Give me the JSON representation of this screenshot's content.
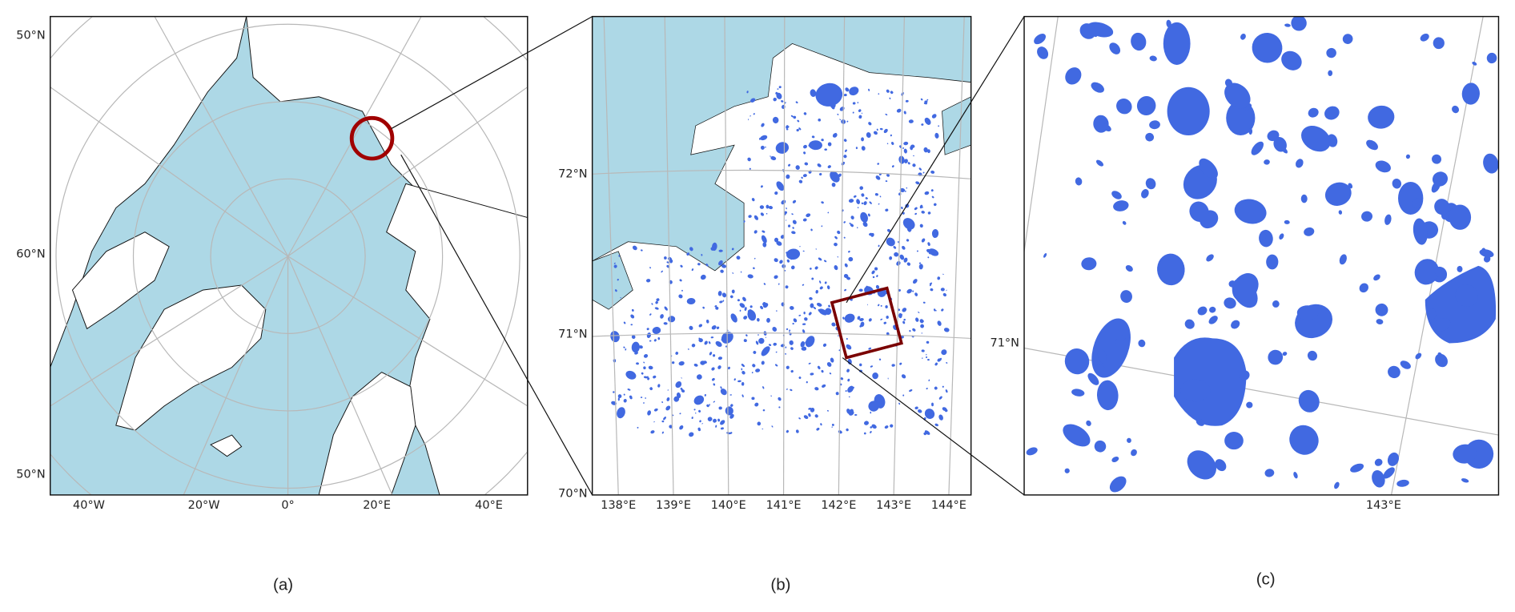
{
  "panels": [
    {
      "caption": "(a)",
      "lat_labels": [
        "50°N",
        "60°N",
        "50°N"
      ],
      "lon_labels": [
        "40°W",
        "20°W",
        "0°",
        "20°E",
        "40°E"
      ]
    },
    {
      "caption": "(b)",
      "lat_labels": [
        "72°N",
        "71°N",
        "70°N"
      ],
      "lon_labels": [
        "138°E",
        "139°E",
        "140°E",
        "141°E",
        "142°E",
        "143°E",
        "144°E"
      ]
    },
    {
      "caption": "(c)",
      "lat_labels": [
        "71°N"
      ],
      "lon_labels": [
        "143°E"
      ]
    }
  ]
}
